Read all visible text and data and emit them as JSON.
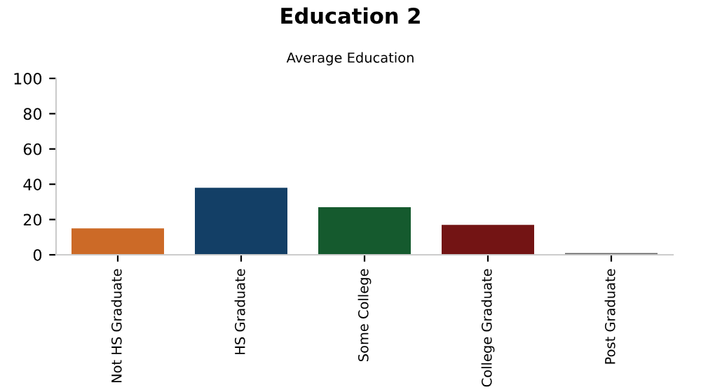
{
  "chart_data": {
    "type": "bar",
    "title": "Education 2",
    "subtitle": "Average Education",
    "categories": [
      "Not HS Graduate",
      "HS Graduate",
      "Some College",
      "College Graduate",
      "Post Graduate"
    ],
    "values": [
      15,
      38,
      27,
      17,
      1
    ],
    "colors": [
      "#cc6a27",
      "#133f66",
      "#155a2e",
      "#731414",
      "#666666"
    ],
    "ylim": [
      0,
      100
    ],
    "yticks": [
      0,
      20,
      40,
      60,
      80,
      100
    ],
    "grid": false,
    "legend": false
  }
}
